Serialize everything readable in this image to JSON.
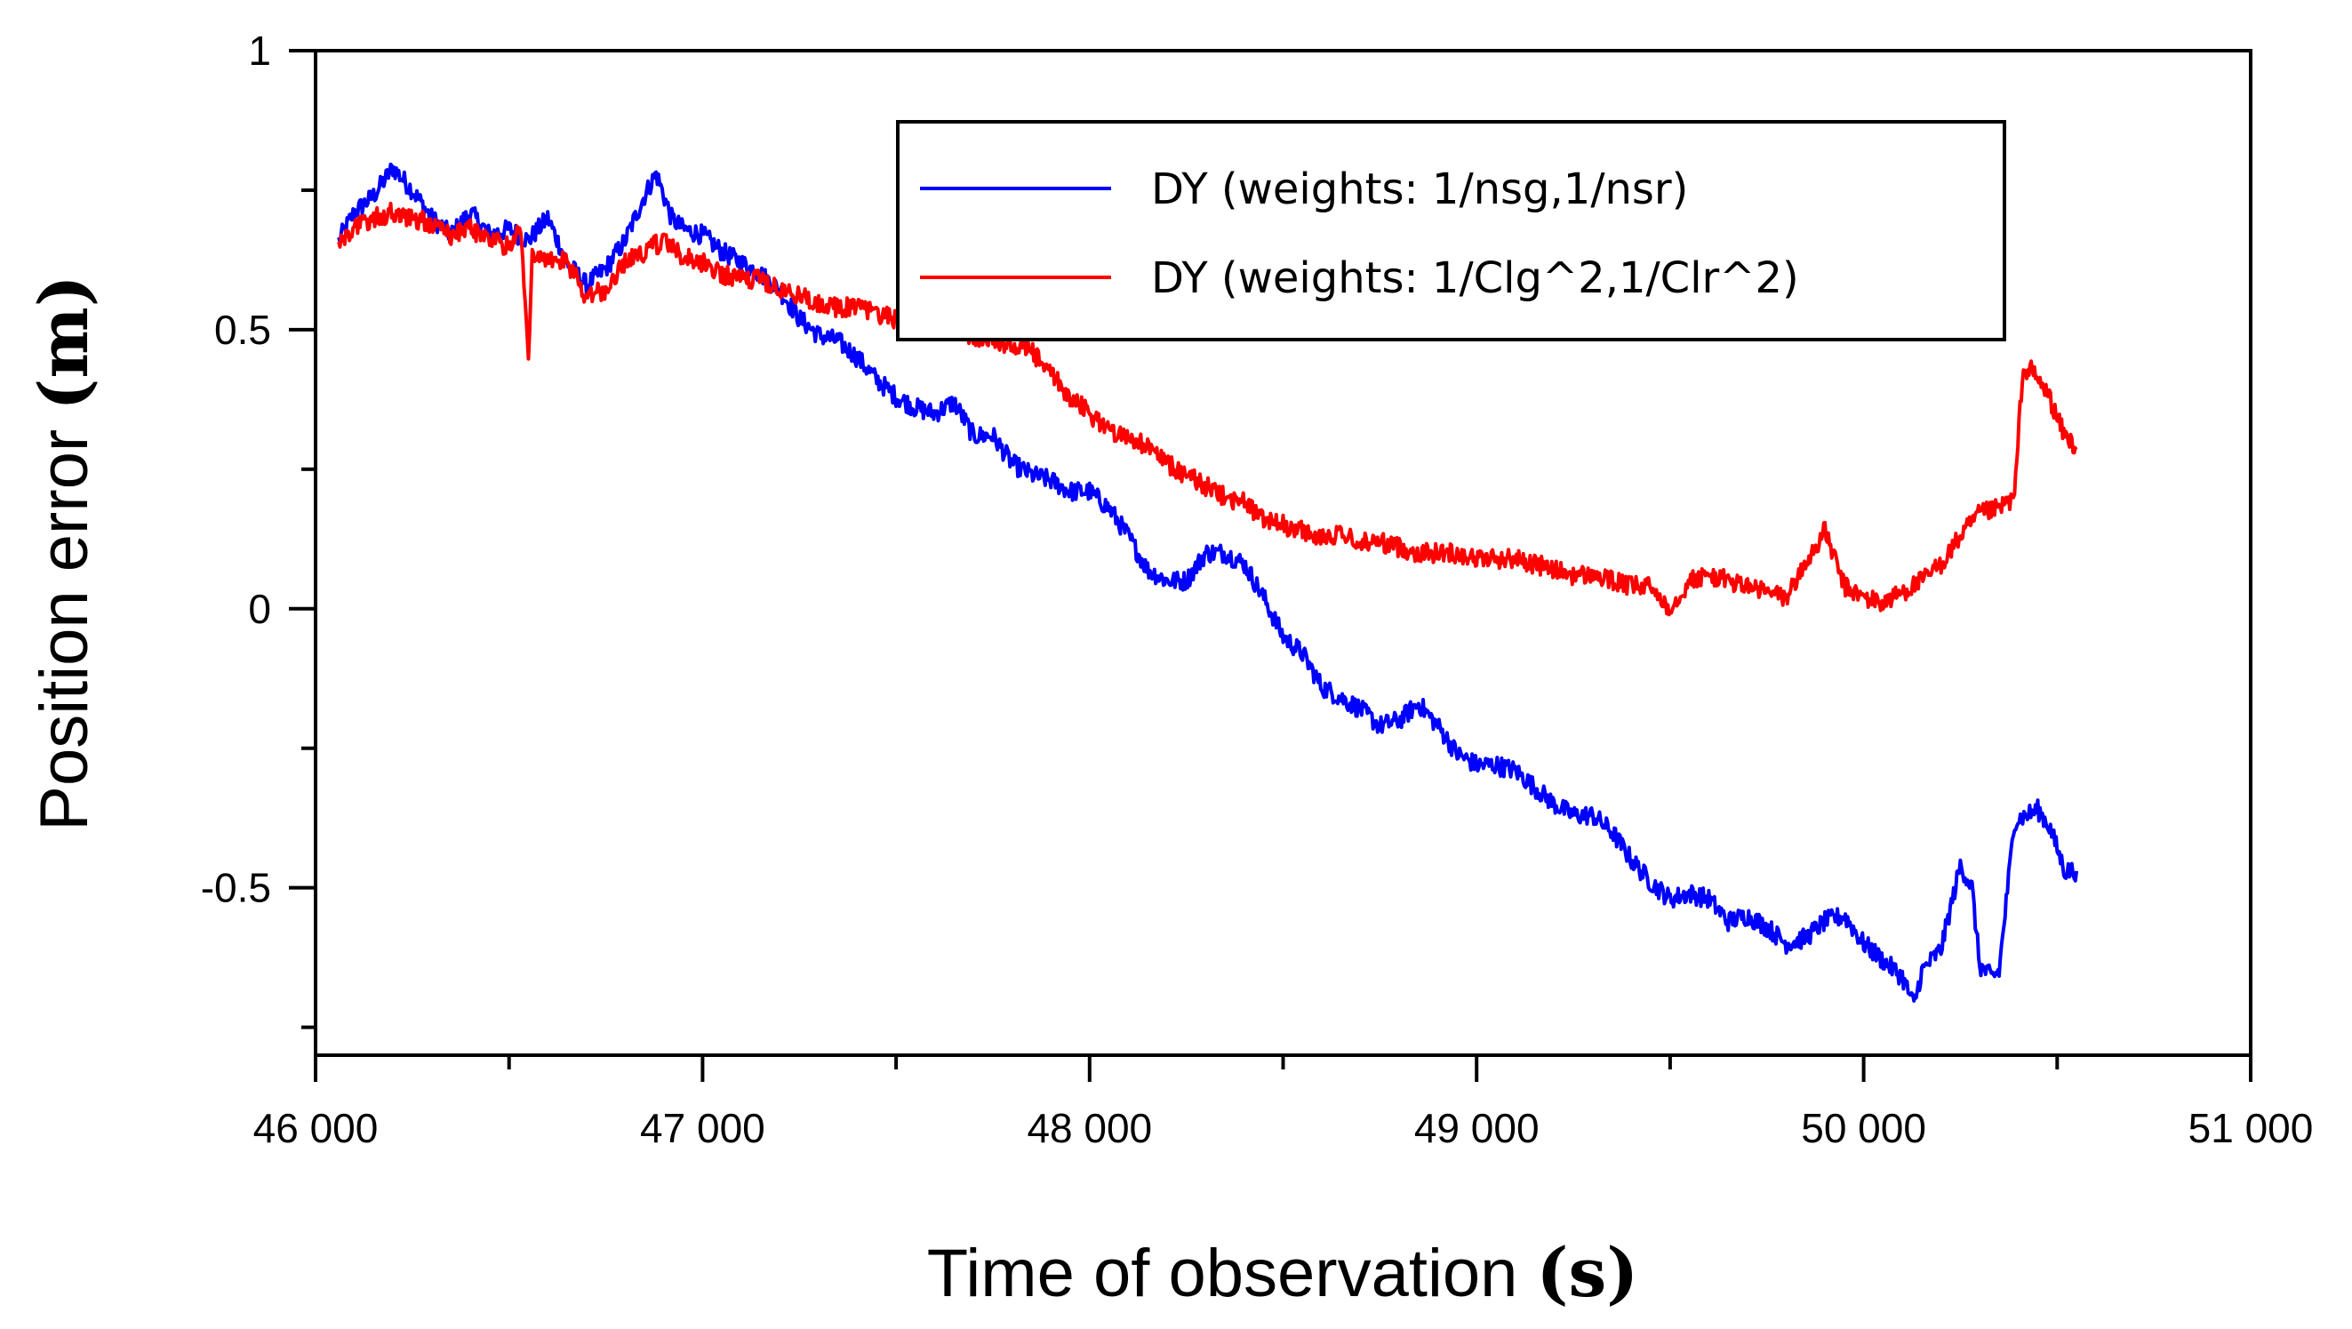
{
  "chart_data": {
    "type": "line",
    "xlabel": "Time of observation",
    "xlabel_unit": "(s)",
    "ylabel": "Position error",
    "ylabel_unit": "(m)",
    "xlim": [
      46000,
      51000
    ],
    "ylim": [
      -0.8,
      1.0
    ],
    "x_ticks": [
      46000,
      47000,
      48000,
      49000,
      50000,
      51000
    ],
    "x_tick_labels": [
      "46 000",
      "47 000",
      "48 000",
      "49 000",
      "50 000",
      "51 000"
    ],
    "x_minor_ticks": [
      46500,
      47500,
      48500,
      49500,
      50500
    ],
    "y_ticks": [
      1,
      0.5,
      0,
      -0.5
    ],
    "y_tick_labels": [
      "1",
      "0.5",
      "0",
      "-0.5"
    ],
    "y_minor_ticks": [
      0.75,
      0.25,
      -0.25,
      -0.75
    ],
    "grid": false,
    "legend_position": "top-right",
    "series": [
      {
        "name": "DY (weights: 1/nsg,1/nsr)",
        "color": "#0000ff",
        "x": [
          46060,
          46100,
          46150,
          46200,
          46250,
          46300,
          46350,
          46400,
          46450,
          46500,
          46550,
          46600,
          46650,
          46700,
          46750,
          46800,
          46850,
          46880,
          46920,
          46950,
          47000,
          47050,
          47100,
          47150,
          47200,
          47250,
          47300,
          47350,
          47400,
          47450,
          47500,
          47550,
          47600,
          47650,
          47700,
          47750,
          47800,
          47850,
          47900,
          47950,
          48000,
          48050,
          48100,
          48150,
          48200,
          48250,
          48300,
          48350,
          48400,
          48450,
          48500,
          48550,
          48600,
          48650,
          48700,
          48750,
          48800,
          48850,
          48900,
          48950,
          49000,
          49050,
          49100,
          49150,
          49200,
          49250,
          49300,
          49350,
          49400,
          49450,
          49500,
          49550,
          49600,
          49650,
          49700,
          49750,
          49800,
          49850,
          49900,
          49950,
          50000,
          50050,
          50100,
          50130,
          50150,
          50200,
          50250,
          50280,
          50300,
          50330,
          50350,
          50390,
          50420,
          50450,
          50480,
          50500,
          50520,
          50550
        ],
        "y": [
          0.66,
          0.71,
          0.74,
          0.79,
          0.75,
          0.7,
          0.67,
          0.71,
          0.67,
          0.68,
          0.66,
          0.7,
          0.62,
          0.58,
          0.61,
          0.66,
          0.74,
          0.78,
          0.7,
          0.68,
          0.67,
          0.64,
          0.62,
          0.6,
          0.57,
          0.52,
          0.49,
          0.48,
          0.45,
          0.41,
          0.38,
          0.36,
          0.35,
          0.37,
          0.31,
          0.31,
          0.26,
          0.24,
          0.23,
          0.21,
          0.21,
          0.18,
          0.13,
          0.07,
          0.05,
          0.05,
          0.1,
          0.1,
          0.08,
          0.02,
          -0.05,
          -0.08,
          -0.14,
          -0.16,
          -0.18,
          -0.21,
          -0.2,
          -0.17,
          -0.21,
          -0.26,
          -0.28,
          -0.28,
          -0.29,
          -0.32,
          -0.35,
          -0.37,
          -0.37,
          -0.4,
          -0.45,
          -0.49,
          -0.52,
          -0.51,
          -0.52,
          -0.56,
          -0.55,
          -0.57,
          -0.6,
          -0.59,
          -0.56,
          -0.55,
          -0.6,
          -0.63,
          -0.66,
          -0.71,
          -0.65,
          -0.61,
          -0.46,
          -0.5,
          -0.64,
          -0.66,
          -0.65,
          -0.38,
          -0.37,
          -0.36,
          -0.39,
          -0.43,
          -0.47,
          -0.47
        ]
      },
      {
        "name": "DY (weights: 1/Clg^2,1/Clr^2)",
        "color": "#ff0000",
        "x": [
          46060,
          46100,
          46150,
          46200,
          46250,
          46300,
          46350,
          46400,
          46450,
          46500,
          46530,
          46550,
          46560,
          46600,
          46650,
          46700,
          46750,
          46800,
          46850,
          46900,
          46950,
          47000,
          47050,
          47100,
          47150,
          47200,
          47250,
          47300,
          47350,
          47400,
          47450,
          47500,
          47550,
          47600,
          47650,
          47700,
          47750,
          47800,
          47850,
          47900,
          47950,
          48000,
          48050,
          48100,
          48150,
          48200,
          48250,
          48300,
          48350,
          48400,
          48450,
          48500,
          48550,
          48600,
          48650,
          48700,
          48750,
          48800,
          48850,
          48900,
          48950,
          49000,
          49050,
          49100,
          49150,
          49200,
          49250,
          49300,
          49350,
          49400,
          49450,
          49500,
          49550,
          49600,
          49650,
          49700,
          49750,
          49800,
          49850,
          49900,
          49950,
          50000,
          50050,
          50100,
          50150,
          50200,
          50250,
          50300,
          50350,
          50390,
          50410,
          50430,
          50450,
          50480,
          50500,
          50520,
          50550
        ],
        "y": [
          0.66,
          0.68,
          0.7,
          0.71,
          0.7,
          0.69,
          0.67,
          0.68,
          0.66,
          0.65,
          0.68,
          0.45,
          0.64,
          0.63,
          0.62,
          0.56,
          0.57,
          0.62,
          0.64,
          0.66,
          0.63,
          0.62,
          0.6,
          0.59,
          0.59,
          0.57,
          0.56,
          0.55,
          0.54,
          0.54,
          0.53,
          0.52,
          0.51,
          0.51,
          0.5,
          0.49,
          0.48,
          0.47,
          0.46,
          0.42,
          0.38,
          0.35,
          0.32,
          0.31,
          0.29,
          0.26,
          0.24,
          0.22,
          0.2,
          0.19,
          0.16,
          0.15,
          0.14,
          0.13,
          0.13,
          0.12,
          0.12,
          0.11,
          0.1,
          0.1,
          0.1,
          0.09,
          0.09,
          0.09,
          0.08,
          0.07,
          0.06,
          0.06,
          0.05,
          0.04,
          0.04,
          0.0,
          0.05,
          0.06,
          0.05,
          0.04,
          0.03,
          0.02,
          0.08,
          0.14,
          0.04,
          0.02,
          0.01,
          0.03,
          0.05,
          0.08,
          0.13,
          0.17,
          0.18,
          0.2,
          0.42,
          0.43,
          0.41,
          0.38,
          0.34,
          0.31,
          0.29
        ]
      }
    ]
  }
}
